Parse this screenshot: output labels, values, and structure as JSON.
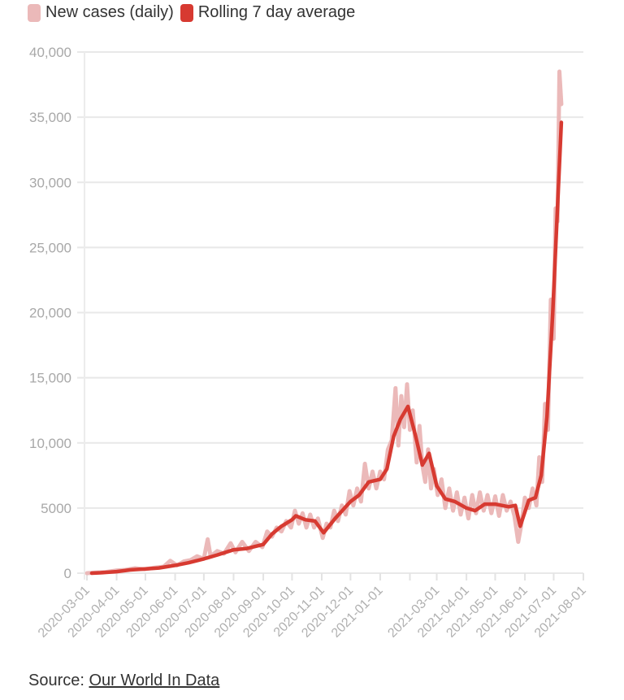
{
  "chart_data": {
    "type": "line",
    "title": "",
    "xlabel": "",
    "ylabel": "",
    "ylim": [
      0,
      40000
    ],
    "xlim": [
      "2020-03-01",
      "2021-08-01"
    ],
    "grid": true,
    "legend_placement": "top-left",
    "yticks": [
      0,
      5000,
      10000,
      15000,
      20000,
      25000,
      30000,
      35000,
      40000
    ],
    "ytick_labels": [
      "0",
      "5000",
      "10,000",
      "15,000",
      "20,000",
      "25,000",
      "30,000",
      "35,000",
      "40,000"
    ],
    "xticks": [
      {
        "date": "2020-03-01",
        "label": "2020-03-01"
      },
      {
        "date": "2020-04-01",
        "label": "2020-04-01"
      },
      {
        "date": "2020-05-01",
        "label": "2020-05-01"
      },
      {
        "date": "2020-06-01",
        "label": "2020-06-01"
      },
      {
        "date": "2020-07-01",
        "label": "2020-07-01"
      },
      {
        "date": "2020-08-01",
        "label": "2020-08-01"
      },
      {
        "date": "2020-09-01",
        "label": "2020-09-01"
      },
      {
        "date": "2020-10-01",
        "label": "2020-10-01"
      },
      {
        "date": "2020-11-01",
        "label": "2020-11-01"
      },
      {
        "date": "2020-12-01",
        "label": "2020-12-01"
      },
      {
        "date": "2021-01-01",
        "label": "2021-01-01"
      },
      {
        "date": "2021-02-01",
        "label": ""
      },
      {
        "date": "2021-03-01",
        "label": "2021-03-01"
      },
      {
        "date": "2021-04-01",
        "label": "2021-04-01"
      },
      {
        "date": "2021-05-01",
        "label": "2021-05-01"
      },
      {
        "date": "2021-06-01",
        "label": "2021-06-01"
      },
      {
        "date": "2021-07-01",
        "label": "2021-07-01"
      },
      {
        "date": "2021-08-01",
        "label": "2021-08-01"
      }
    ],
    "series": [
      {
        "name": "New cases (daily)",
        "color": "#ebb9b9",
        "points": [
          [
            "2020-03-01",
            0
          ],
          [
            "2020-03-10",
            50
          ],
          [
            "2020-03-20",
            80
          ],
          [
            "2020-03-31",
            200
          ],
          [
            "2020-04-10",
            250
          ],
          [
            "2020-04-20",
            380
          ],
          [
            "2020-04-30",
            300
          ],
          [
            "2020-05-10",
            420
          ],
          [
            "2020-05-20",
            500
          ],
          [
            "2020-05-27",
            950
          ],
          [
            "2020-06-03",
            600
          ],
          [
            "2020-06-10",
            900
          ],
          [
            "2020-06-17",
            1000
          ],
          [
            "2020-06-24",
            1300
          ],
          [
            "2020-07-01",
            1100
          ],
          [
            "2020-07-05",
            2600
          ],
          [
            "2020-07-08",
            1300
          ],
          [
            "2020-07-15",
            1700
          ],
          [
            "2020-07-22",
            1500
          ],
          [
            "2020-07-29",
            2300
          ],
          [
            "2020-08-03",
            1600
          ],
          [
            "2020-08-10",
            2400
          ],
          [
            "2020-08-17",
            1700
          ],
          [
            "2020-08-24",
            2400
          ],
          [
            "2020-08-31",
            2000
          ],
          [
            "2020-09-05",
            3200
          ],
          [
            "2020-09-10",
            2800
          ],
          [
            "2020-09-15",
            3500
          ],
          [
            "2020-09-20",
            3200
          ],
          [
            "2020-09-25",
            4000
          ],
          [
            "2020-09-30",
            3500
          ],
          [
            "2020-10-04",
            4800
          ],
          [
            "2020-10-08",
            3800
          ],
          [
            "2020-10-12",
            4600
          ],
          [
            "2020-10-16",
            3500
          ],
          [
            "2020-10-20",
            4500
          ],
          [
            "2020-10-24",
            3500
          ],
          [
            "2020-10-28",
            4200
          ],
          [
            "2020-11-02",
            2700
          ],
          [
            "2020-11-06",
            3800
          ],
          [
            "2020-11-10",
            3500
          ],
          [
            "2020-11-14",
            4800
          ],
          [
            "2020-11-18",
            4000
          ],
          [
            "2020-11-22",
            5200
          ],
          [
            "2020-11-26",
            4500
          ],
          [
            "2020-11-30",
            6300
          ],
          [
            "2020-12-04",
            5200
          ],
          [
            "2020-12-08",
            6500
          ],
          [
            "2020-12-12",
            5500
          ],
          [
            "2020-12-16",
            8400
          ],
          [
            "2020-12-20",
            6500
          ],
          [
            "2020-12-24",
            7800
          ],
          [
            "2020-12-28",
            6500
          ],
          [
            "2021-01-01",
            7800
          ],
          [
            "2021-01-05",
            7200
          ],
          [
            "2021-01-09",
            9500
          ],
          [
            "2021-01-13",
            10200
          ],
          [
            "2021-01-17",
            14200
          ],
          [
            "2021-01-20",
            9800
          ],
          [
            "2021-01-23",
            13600
          ],
          [
            "2021-01-26",
            11200
          ],
          [
            "2021-01-29",
            14500
          ],
          [
            "2021-02-01",
            11000
          ],
          [
            "2021-02-04",
            12500
          ],
          [
            "2021-02-08",
            8500
          ],
          [
            "2021-02-11",
            11300
          ],
          [
            "2021-02-14",
            8300
          ],
          [
            "2021-02-17",
            7000
          ],
          [
            "2021-02-20",
            9500
          ],
          [
            "2021-02-23",
            6500
          ],
          [
            "2021-02-26",
            8000
          ],
          [
            "2021-03-02",
            6000
          ],
          [
            "2021-03-06",
            7200
          ],
          [
            "2021-03-10",
            5000
          ],
          [
            "2021-03-14",
            6500
          ],
          [
            "2021-03-18",
            4800
          ],
          [
            "2021-03-22",
            6200
          ],
          [
            "2021-03-26",
            4500
          ],
          [
            "2021-03-30",
            5800
          ],
          [
            "2021-04-03",
            4200
          ],
          [
            "2021-04-07",
            6000
          ],
          [
            "2021-04-11",
            4600
          ],
          [
            "2021-04-15",
            6200
          ],
          [
            "2021-04-19",
            4800
          ],
          [
            "2021-04-23",
            6000
          ],
          [
            "2021-04-27",
            4600
          ],
          [
            "2021-05-01",
            5900
          ],
          [
            "2021-05-05",
            4400
          ],
          [
            "2021-05-09",
            6000
          ],
          [
            "2021-05-13",
            4800
          ],
          [
            "2021-05-17",
            5500
          ],
          [
            "2021-05-21",
            4400
          ],
          [
            "2021-05-25",
            2400
          ],
          [
            "2021-05-28",
            3600
          ],
          [
            "2021-06-01",
            5800
          ],
          [
            "2021-06-05",
            5000
          ],
          [
            "2021-06-09",
            6500
          ],
          [
            "2021-06-13",
            5200
          ],
          [
            "2021-06-16",
            8900
          ],
          [
            "2021-06-19",
            7000
          ],
          [
            "2021-06-22",
            13000
          ],
          [
            "2021-06-25",
            11000
          ],
          [
            "2021-06-28",
            21000
          ],
          [
            "2021-07-01",
            18000
          ],
          [
            "2021-07-03",
            28000
          ],
          [
            "2021-07-05",
            27000
          ],
          [
            "2021-07-07",
            38500
          ],
          [
            "2021-07-09",
            36000
          ]
        ]
      },
      {
        "name": "Rolling 7 day average",
        "color": "#d73a31",
        "points": [
          [
            "2020-03-06",
            0
          ],
          [
            "2020-03-15",
            30
          ],
          [
            "2020-04-01",
            120
          ],
          [
            "2020-04-15",
            250
          ],
          [
            "2020-05-01",
            330
          ],
          [
            "2020-05-15",
            400
          ],
          [
            "2020-06-01",
            600
          ],
          [
            "2020-06-15",
            800
          ],
          [
            "2020-07-01",
            1100
          ],
          [
            "2020-07-15",
            1400
          ],
          [
            "2020-08-01",
            1800
          ],
          [
            "2020-08-15",
            1900
          ],
          [
            "2020-09-01",
            2200
          ],
          [
            "2020-09-10",
            3000
          ],
          [
            "2020-09-20",
            3600
          ],
          [
            "2020-10-01",
            4100
          ],
          [
            "2020-10-05",
            4400
          ],
          [
            "2020-10-15",
            4100
          ],
          [
            "2020-10-25",
            4000
          ],
          [
            "2020-11-03",
            3100
          ],
          [
            "2020-11-15",
            4200
          ],
          [
            "2020-12-01",
            5500
          ],
          [
            "2020-12-10",
            6000
          ],
          [
            "2020-12-20",
            7000
          ],
          [
            "2021-01-01",
            7200
          ],
          [
            "2021-01-08",
            8000
          ],
          [
            "2021-01-15",
            10500
          ],
          [
            "2021-01-22",
            11800
          ],
          [
            "2021-01-30",
            12800
          ],
          [
            "2021-02-07",
            10500
          ],
          [
            "2021-02-14",
            8300
          ],
          [
            "2021-02-21",
            9200
          ],
          [
            "2021-03-01",
            6700
          ],
          [
            "2021-03-10",
            5700
          ],
          [
            "2021-03-20",
            5500
          ],
          [
            "2021-04-01",
            5000
          ],
          [
            "2021-04-10",
            4800
          ],
          [
            "2021-04-20",
            5300
          ],
          [
            "2021-05-01",
            5300
          ],
          [
            "2021-05-15",
            5100
          ],
          [
            "2021-05-22",
            5200
          ],
          [
            "2021-05-27",
            3600
          ],
          [
            "2021-06-05",
            5600
          ],
          [
            "2021-06-12",
            5800
          ],
          [
            "2021-06-18",
            7500
          ],
          [
            "2021-06-24",
            12000
          ],
          [
            "2021-06-30",
            20000
          ],
          [
            "2021-07-09",
            34600
          ]
        ]
      }
    ]
  },
  "legend": {
    "items": [
      {
        "label": "New cases (daily)",
        "color": "#ebb9b9"
      },
      {
        "label": "Rolling 7 day average",
        "color": "#d73a31"
      }
    ]
  },
  "source": {
    "prefix": "Source: ",
    "link_text": "Our World In Data"
  }
}
